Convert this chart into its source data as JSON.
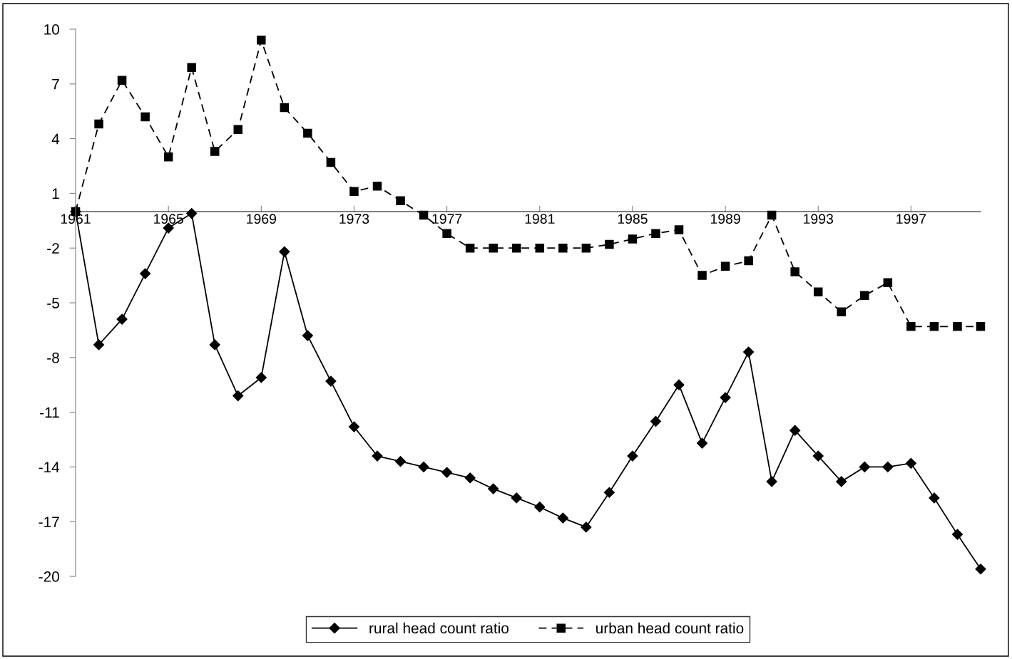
{
  "chart_data": {
    "type": "line",
    "x": [
      1961,
      1962,
      1963,
      1964,
      1965,
      1966,
      1967,
      1968,
      1969,
      1970,
      1971,
      1972,
      1973,
      1974,
      1975,
      1976,
      1977,
      1978,
      1979,
      1980,
      1981,
      1982,
      1983,
      1984,
      1985,
      1986,
      1987,
      1988,
      1989,
      1990,
      1991,
      1992,
      1993,
      1994,
      1995,
      1996,
      1997,
      1998,
      1999,
      2000
    ],
    "series": [
      {
        "name": "rural head count ratio",
        "color": "#000000",
        "marker": "diamond",
        "line_style": "solid",
        "values": [
          0,
          -7.3,
          -5.9,
          -3.4,
          -0.9,
          -0.1,
          -7.3,
          -10.1,
          -9.1,
          -2.2,
          -6.8,
          -9.3,
          -11.8,
          -13.4,
          -13.7,
          -14.0,
          -14.3,
          -14.6,
          -15.2,
          -15.7,
          -16.2,
          -16.8,
          -17.3,
          -15.4,
          -13.4,
          -11.5,
          -9.5,
          -12.7,
          -10.2,
          -7.7,
          -14.8,
          -12.0,
          -13.4,
          -14.8,
          -14.0,
          -14.0,
          -13.8,
          -15.7,
          -17.7,
          -19.6
        ]
      },
      {
        "name": "urban head count ratio",
        "color": "#000000",
        "marker": "square",
        "line_style": "dashed",
        "values": [
          0,
          4.8,
          7.2,
          5.2,
          3.0,
          7.9,
          3.3,
          4.5,
          9.4,
          5.7,
          4.3,
          2.7,
          1.1,
          1.4,
          0.6,
          -0.2,
          -1.2,
          -2.0,
          -2.0,
          -2.0,
          -2.0,
          -2.0,
          -2.0,
          -1.8,
          -1.5,
          -1.2,
          -1.0,
          -3.5,
          -3.0,
          -2.7,
          -0.2,
          -3.3,
          -4.4,
          -5.5,
          -4.6,
          -3.9,
          -6.3,
          -6.3,
          -6.3,
          -6.3
        ]
      }
    ],
    "xlim": [
      1961,
      2000
    ],
    "xticks": [
      1961,
      1965,
      1969,
      1973,
      1977,
      1981,
      1985,
      1989,
      1993,
      1997
    ],
    "ylim": [
      -20,
      10
    ],
    "yticks": [
      -20,
      -17,
      -14,
      -11,
      -8,
      -5,
      -2,
      1,
      4,
      7,
      10
    ],
    "grid": false,
    "legend": "bottom"
  }
}
